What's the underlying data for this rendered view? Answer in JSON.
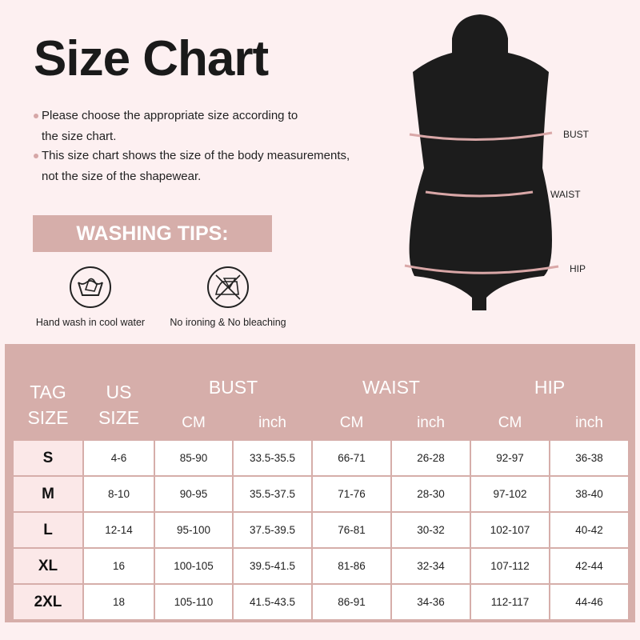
{
  "title": "Size Chart",
  "notes": [
    [
      "Please choose the appropriate size according to",
      "the size chart."
    ],
    [
      "This size chart shows the size of the body measurements,",
      "not the size of the shapewear."
    ]
  ],
  "washing": {
    "heading": "WASHING TIPS:",
    "tips": [
      {
        "icon": "hand-wash-icon",
        "label": "Hand wash in cool water"
      },
      {
        "icon": "no-iron-no-bleach-icon",
        "label": "No ironing & No bleaching"
      }
    ]
  },
  "measurements": [
    "BUST",
    "WAIST",
    "HIP"
  ],
  "colors": {
    "accent": "#d6aeaa",
    "background": "#fdf0f1",
    "tag_cell": "#fbe8e8"
  },
  "table": {
    "headers": {
      "tag": [
        "TAG",
        "SIZE"
      ],
      "us": [
        "US",
        "SIZE"
      ],
      "groups": [
        "BUST",
        "WAIST",
        "HIP"
      ],
      "units": [
        "CM",
        "inch"
      ]
    },
    "rows": [
      [
        "S",
        "4-6",
        "85-90",
        "33.5-35.5",
        "66-71",
        "26-28",
        "92-97",
        "36-38"
      ],
      [
        "M",
        "8-10",
        "90-95",
        "35.5-37.5",
        "71-76",
        "28-30",
        "97-102",
        "38-40"
      ],
      [
        "L",
        "12-14",
        "95-100",
        "37.5-39.5",
        "76-81",
        "30-32",
        "102-107",
        "40-42"
      ],
      [
        "XL",
        "16",
        "100-105",
        "39.5-41.5",
        "81-86",
        "32-34",
        "107-112",
        "42-44"
      ],
      [
        "2XL",
        "18",
        "105-110",
        "41.5-43.5",
        "86-91",
        "34-36",
        "112-117",
        "44-46"
      ]
    ]
  }
}
